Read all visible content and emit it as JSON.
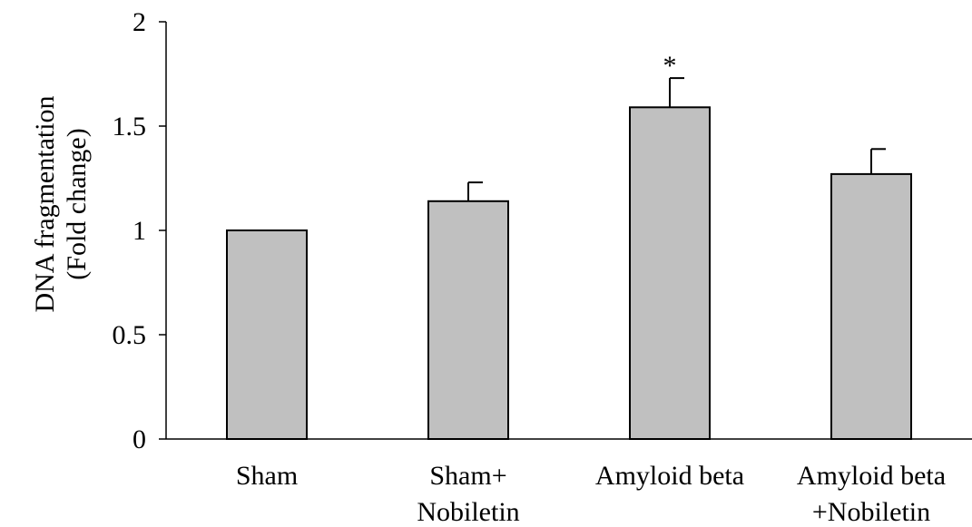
{
  "chart_data": {
    "type": "bar",
    "title": "",
    "xlabel": "",
    "ylabel_lines": [
      "DNA fragmentation",
      "(Fold change)"
    ],
    "ylim": [
      0,
      2
    ],
    "yticks": [
      0,
      0.5,
      1,
      1.5,
      2
    ],
    "ytick_labels": [
      "0",
      "0.5",
      "1",
      "1.5",
      "2"
    ],
    "categories": [
      [
        "Sham"
      ],
      [
        "Sham+",
        "Nobiletin"
      ],
      [
        "Amyloid beta"
      ],
      [
        "Amyloid beta",
        "+Nobiletin"
      ]
    ],
    "values": [
      1.0,
      1.14,
      1.59,
      1.27
    ],
    "errors": [
      0,
      0.09,
      0.14,
      0.12
    ],
    "significance": [
      "",
      "",
      "*",
      ""
    ],
    "grid": false,
    "legend": "none",
    "colors": {
      "bar_fill": "#c0c0c0",
      "bar_stroke": "#000000",
      "axis": "#000000"
    }
  }
}
